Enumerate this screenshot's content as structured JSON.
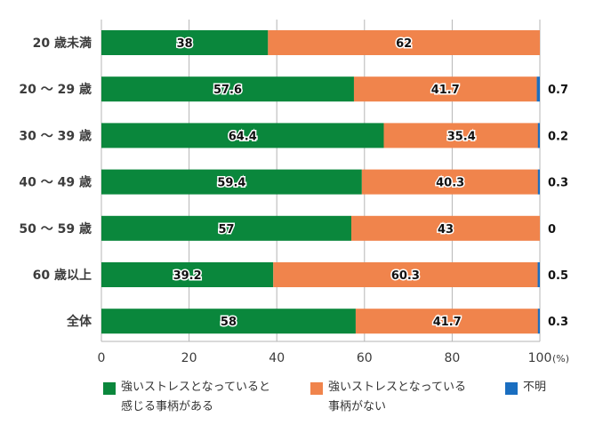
{
  "chart_data": {
    "type": "bar",
    "orientation": "horizontal",
    "stacked": true,
    "title": "",
    "xlabel": "",
    "ylabel": "",
    "xlim": [
      0,
      100
    ],
    "x_ticks": [
      "0",
      "20",
      "40",
      "60",
      "80",
      "100"
    ],
    "x_unit": "(%)",
    "grid": true,
    "categories": [
      "20 歳未満",
      "20 ～ 29 歳",
      "30 ～ 39 歳",
      "40 ～ 49 歳",
      "50 ～ 59 歳",
      "60 歳以上",
      "全体"
    ],
    "series": [
      {
        "name": "強いストレスとなっていると感じる事柄がある",
        "color": "#0a873c",
        "values": [
          38,
          57.6,
          64.4,
          59.4,
          57,
          39.2,
          58
        ]
      },
      {
        "name": "強いストレスとなっている事柄がない",
        "color": "#f0844c",
        "values": [
          62,
          41.7,
          35.4,
          40.3,
          43,
          60.3,
          41.7
        ]
      },
      {
        "name": "不明",
        "color": "#1a6ec0",
        "values": [
          null,
          0.7,
          0.2,
          0.3,
          0,
          0.5,
          0.3
        ]
      }
    ],
    "value_labels": {
      "series0": [
        "38",
        "57.6",
        "64.4",
        "59.4",
        "57",
        "39.2",
        "58"
      ],
      "series1": [
        "62",
        "41.7",
        "35.4",
        "40.3",
        "43",
        "60.3",
        "41.7"
      ],
      "series2": [
        "",
        "0.7",
        "0.2",
        "0.3",
        "0",
        "0.5",
        "0.3"
      ]
    },
    "legend": {
      "placement": "bottom",
      "items": [
        {
          "line1": "強いストレスとなっていると",
          "line2": "感じる事柄がある",
          "color": "#0a873c"
        },
        {
          "line1": "強いストレスとなっている",
          "line2": "事柄がない",
          "color": "#f0844c"
        },
        {
          "line1": "不明",
          "line2": "",
          "color": "#1a6ec0"
        }
      ]
    }
  }
}
